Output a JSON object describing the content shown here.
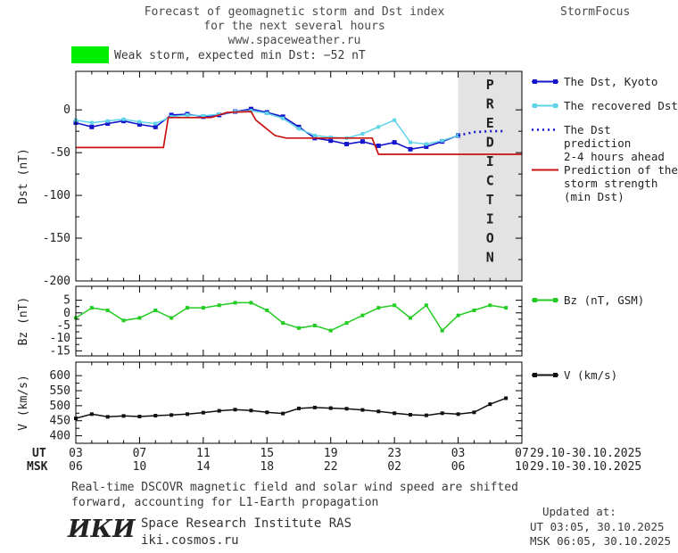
{
  "header": {
    "title_line1": "Forecast of geomagnetic storm and Dst index",
    "title_line2": "for the next several hours",
    "title_line3": "www.spaceweather.ru",
    "brand": "StormFocus"
  },
  "alert": {
    "label": "Weak storm, expected min Dst: −52 nT",
    "swatch_color": "#00ee00"
  },
  "legend": {
    "dst_kyoto": "The Dst, Kyoto",
    "recovered": "The recovered Dst",
    "prediction": [
      "The Dst prediction",
      "2-4 hours ahead"
    ],
    "storm": [
      "Prediction of the",
      "storm strength",
      "(min Dst)"
    ],
    "bz": "Bz (nT, GSM)",
    "v": "V (km/s)"
  },
  "axes": {
    "ut_label": "UT",
    "msk_label": "MSK",
    "ut_ticks": [
      "03",
      "07",
      "11",
      "15",
      "19",
      "23",
      "03",
      "07"
    ],
    "msk_ticks": [
      "06",
      "10",
      "14",
      "18",
      "22",
      "02",
      "06",
      "10"
    ],
    "ut_date_range": "29.10-30.10.2025",
    "msk_date_range": "29.10-30.10.2025"
  },
  "footer": {
    "note_line1": "Real-time DSCOVR magnetic field and solar wind speed are shifted",
    "note_line2": "forward, accounting for L1-Earth propagation",
    "updated_label": "Updated at:",
    "updated_ut": "UT  03:05, 30.10.2025",
    "updated_msk": "MSK 06:05, 30.10.2025",
    "logo": "ИКИ",
    "institute": "Space Research Institute RAS",
    "institute_url": "iki.cosmos.ru"
  },
  "chart_data": [
    {
      "id": "dst",
      "type": "line",
      "ylabel": "Dst (nT)",
      "ylim": [
        -200,
        45
      ],
      "xlim": [
        3,
        31
      ],
      "yticks": [
        0,
        -50,
        -100,
        -150,
        -200
      ],
      "xticks": [
        3,
        7,
        11,
        15,
        19,
        23,
        27,
        31
      ],
      "prediction_band": {
        "from": 27,
        "to": 31,
        "label": "PREDICTION",
        "fill": "#e3e3e3",
        "text_color": "#b4b4b4"
      },
      "series": [
        {
          "name": "The Dst, Kyoto",
          "color": "#1414cc",
          "marker": "square",
          "marker_size": 5,
          "width": 1.6,
          "x": [
            3,
            4,
            5,
            6,
            7,
            8,
            9,
            10,
            11,
            12,
            13,
            14,
            15,
            16,
            17,
            18,
            19,
            20,
            21,
            22,
            23,
            24,
            25,
            26,
            27
          ],
          "y": [
            -15,
            -20,
            -16,
            -13,
            -17,
            -20,
            -6,
            -5,
            -8,
            -6,
            -2,
            1,
            -3,
            -8,
            -20,
            -33,
            -36,
            -40,
            -37,
            -42,
            -38,
            -46,
            -43,
            -37,
            -30
          ]
        },
        {
          "name": "The recovered Dst",
          "color": "#5fd4e8",
          "marker": "square",
          "marker_size": 4,
          "width": 1.5,
          "x": [
            3,
            4,
            5,
            6,
            7,
            8,
            9,
            10,
            11,
            12,
            13,
            14,
            15,
            16,
            17,
            18,
            19,
            20,
            21,
            22,
            23,
            24,
            25,
            26,
            27
          ],
          "y": [
            -12,
            -15,
            -13,
            -11,
            -14,
            -16,
            -8,
            -6,
            -7,
            -5,
            -2,
            -1,
            -4,
            -10,
            -22,
            -30,
            -32,
            -33,
            -28,
            -20,
            -12,
            -38,
            -40,
            -36,
            -30
          ]
        },
        {
          "name": "The Dst prediction 2-4 hours ahead",
          "color": "#1414cc",
          "dash": "2 4",
          "width": 2.6,
          "x": [
            27,
            28,
            29,
            30
          ],
          "y": [
            -30,
            -26,
            -25,
            -25
          ]
        },
        {
          "name": "Prediction of the storm strength (min Dst)",
          "color": "#cc1111",
          "width": 1.7,
          "x": [
            3,
            8.5,
            8.8,
            11.5,
            12.5,
            14,
            14.3,
            15.5,
            16.2,
            21.6,
            22,
            31
          ],
          "y": [
            -44,
            -44,
            -9,
            -9,
            -3,
            -2,
            -12,
            -30,
            -33,
            -33,
            -52,
            -52
          ]
        }
      ]
    },
    {
      "id": "bz",
      "type": "line",
      "ylabel": "Bz (nT)",
      "ylim": [
        -17,
        10.5
      ],
      "xlim": [
        3,
        31
      ],
      "yticks": [
        5,
        0,
        -5,
        -10,
        -15
      ],
      "xticks": [
        3,
        7,
        11,
        15,
        19,
        23,
        27,
        31
      ],
      "series": [
        {
          "name": "Bz (nT, GSM)",
          "color": "#22cc22",
          "marker": "square",
          "marker_size": 4,
          "width": 1.5,
          "x": [
            3,
            4,
            5,
            6,
            7,
            8,
            9,
            10,
            11,
            12,
            13,
            14,
            15,
            16,
            17,
            18,
            19,
            20,
            21,
            22,
            23,
            24,
            25,
            26,
            27,
            28,
            29,
            30
          ],
          "y": [
            -2,
            2,
            1,
            -3,
            -2,
            1,
            -2,
            2,
            2,
            3,
            4,
            4,
            1,
            -4,
            -6,
            -5,
            -7,
            -4,
            -1,
            2,
            3,
            -2,
            3,
            -7,
            -1,
            1,
            3,
            2
          ]
        }
      ]
    },
    {
      "id": "v",
      "type": "line",
      "ylabel": "V (km/s)",
      "ylim": [
        375,
        645
      ],
      "xlim": [
        3,
        31
      ],
      "yticks": [
        600,
        550,
        500,
        450,
        400
      ],
      "xticks": [
        3,
        7,
        11,
        15,
        19,
        23,
        27,
        31
      ],
      "series": [
        {
          "name": "V (km/s)",
          "color": "#111111",
          "marker": "square",
          "marker_size": 4,
          "width": 1.5,
          "x": [
            3,
            4,
            5,
            6,
            7,
            8,
            9,
            10,
            11,
            12,
            13,
            14,
            15,
            16,
            17,
            18,
            19,
            20,
            21,
            22,
            23,
            24,
            25,
            26,
            27,
            28,
            29,
            30
          ],
          "y": [
            458,
            472,
            463,
            466,
            464,
            467,
            469,
            472,
            477,
            483,
            487,
            484,
            478,
            474,
            491,
            494,
            492,
            490,
            486,
            481,
            475,
            470,
            468,
            475,
            472,
            478,
            505,
            525
          ]
        }
      ]
    }
  ]
}
